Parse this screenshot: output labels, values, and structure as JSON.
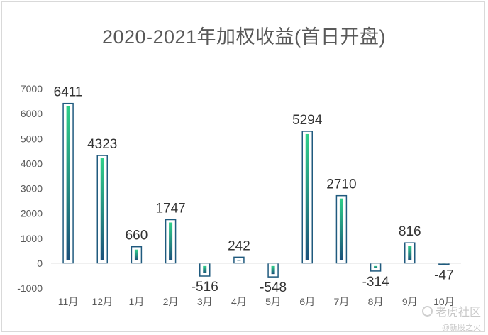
{
  "chart_data": {
    "type": "bar",
    "title": "2020-2021年加权收益(首日开盘)",
    "categories": [
      "11月",
      "12月",
      "1月",
      "2月",
      "3月",
      "4月",
      "5月",
      "6月",
      "7月",
      "8月",
      "9月",
      "10月"
    ],
    "values": [
      6411,
      4323,
      660,
      1747,
      -516,
      242,
      -548,
      5294,
      2710,
      -314,
      816,
      -47
    ],
    "data_labels": [
      "6411",
      "4323",
      "660",
      "1747",
      "-516",
      "242",
      "-548",
      "5294",
      "2710",
      "-314",
      "816",
      "-47"
    ],
    "ylim": [
      -1000,
      7000
    ],
    "yticks": [
      7000,
      6000,
      5000,
      4000,
      3000,
      2000,
      1000,
      0,
      -1000
    ],
    "ytick_labels": [
      "7000",
      "6000",
      "5000",
      "4000",
      "3000",
      "2000",
      "1000",
      "0",
      "-1000"
    ],
    "xlabel": "",
    "ylabel": "",
    "grid": false,
    "legend": "none",
    "colors": {
      "bar_top": "#2ecf8a",
      "bar_bottom": "#1a4f7a",
      "bar_outline": "#1f5a7e",
      "axis": "#d9d9d9"
    }
  },
  "watermark": {
    "main": "老虎社区",
    "sub": "@新股之火"
  }
}
